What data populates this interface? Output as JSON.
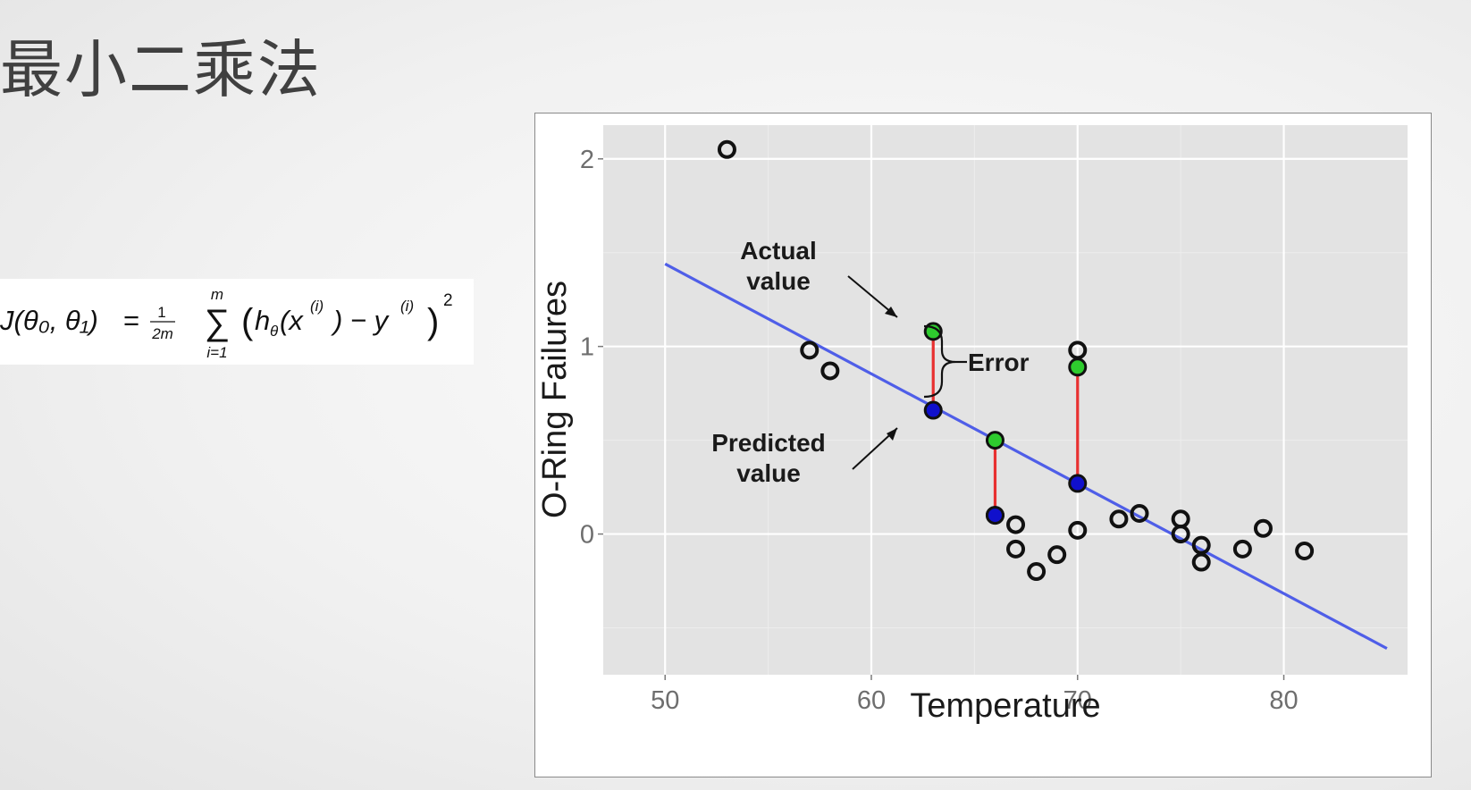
{
  "slide": {
    "title": "最小二乘法",
    "formula": {
      "lhs": "J(θ₀, θ₁)",
      "eq": "=",
      "frac_num": "1",
      "frac_den": "2m",
      "sum_sym": "∑",
      "sum_upper": "m",
      "sum_lower": "i=1",
      "h": "h",
      "h_sub": "θ",
      "x": "(x",
      "x_sup": "(i)",
      "minus": ") − y",
      "y_sup": "(i)",
      "power": "2"
    }
  },
  "chart_data": {
    "type": "scatter",
    "xlabel": "Temperature",
    "ylabel": "O-Ring Failures",
    "xlim": [
      47,
      86
    ],
    "ylim": [
      -0.75,
      2.18
    ],
    "xticks": [
      50,
      60,
      70,
      80
    ],
    "yticks": [
      0,
      1,
      2
    ],
    "grid": true,
    "background": "#e3e3e3",
    "points": [
      {
        "x": 53,
        "y": 2.05
      },
      {
        "x": 57,
        "y": 0.98
      },
      {
        "x": 58,
        "y": 0.87
      },
      {
        "x": 66,
        "y": 0.1
      },
      {
        "x": 67,
        "y": 0.05
      },
      {
        "x": 67,
        "y": -0.08
      },
      {
        "x": 68,
        "y": -0.2
      },
      {
        "x": 69,
        "y": -0.11
      },
      {
        "x": 70,
        "y": 0.98
      },
      {
        "x": 70,
        "y": 0.02
      },
      {
        "x": 72,
        "y": 0.08
      },
      {
        "x": 73,
        "y": 0.11
      },
      {
        "x": 75,
        "y": 0.08
      },
      {
        "x": 75,
        "y": 0.0
      },
      {
        "x": 76,
        "y": -0.06
      },
      {
        "x": 76,
        "y": -0.15
      },
      {
        "x": 78,
        "y": -0.08
      },
      {
        "x": 79,
        "y": 0.03
      },
      {
        "x": 81,
        "y": -0.09
      }
    ],
    "fit_line": {
      "x0": 50,
      "y0": 1.44,
      "x1": 85,
      "y1": -0.61,
      "color": "#4f5ee8"
    },
    "actual_points": [
      {
        "x": 63,
        "y": 1.08
      },
      {
        "x": 66,
        "y": 0.5
      },
      {
        "x": 70,
        "y": 0.89
      }
    ],
    "predicted_points": [
      {
        "x": 63,
        "y": 0.66
      },
      {
        "x": 66,
        "y": 0.1
      },
      {
        "x": 70,
        "y": 0.27
      }
    ],
    "actual_color": "#2ecc2e",
    "predicted_color": "#1010cc",
    "error_line_color": "#e83030",
    "annotations": {
      "actual_line1": "Actual",
      "actual_line2": "value",
      "predicted_line1": "Predicted",
      "predicted_line2": "value",
      "error": "Error"
    }
  }
}
